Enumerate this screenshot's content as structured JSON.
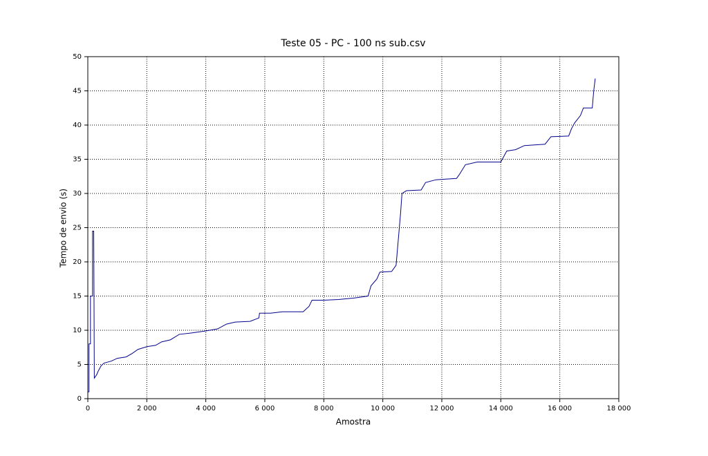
{
  "chart_data": {
    "type": "line",
    "title": "Teste 05 - PC - 100 ns sub.csv",
    "xlabel": "Amostra",
    "ylabel": "Tempo de envio (s)",
    "color": "#00008b",
    "grid": true,
    "xlim": [
      0,
      18000
    ],
    "ylim": [
      0,
      50
    ],
    "xticks": [
      0,
      {
        "value": 2000,
        "label": "2 000"
      },
      {
        "value": 4000,
        "label": "4 000"
      },
      {
        "value": 6000,
        "label": "6 000"
      },
      {
        "value": 8000,
        "label": "8 000"
      },
      {
        "value": 10000,
        "label": "10 000"
      },
      {
        "value": 12000,
        "label": "12 000"
      },
      {
        "value": 14000,
        "label": "14 000"
      },
      {
        "value": 16000,
        "label": "16 000"
      },
      {
        "value": 18000,
        "label": "18 000"
      }
    ],
    "yticks": [
      0,
      5,
      10,
      15,
      20,
      25,
      30,
      35,
      40,
      45,
      50
    ],
    "x": [
      0,
      40,
      40,
      90,
      90,
      160,
      160,
      200,
      210,
      220,
      300,
      350,
      450,
      550,
      800,
      1000,
      1300,
      1500,
      1700,
      2000,
      2300,
      2500,
      2800,
      3100,
      3500,
      4000,
      4400,
      4700,
      5000,
      5500,
      5800,
      5820,
      6200,
      6600,
      7000,
      7300,
      7500,
      7600,
      8000,
      8500,
      9000,
      9500,
      9600,
      9800,
      9900,
      10300,
      10450,
      10500,
      10600,
      10650,
      10800,
      11300,
      11450,
      11800,
      12500,
      12600,
      12800,
      13200,
      14000,
      14200,
      14500,
      14800,
      15500,
      15700,
      16300,
      16400,
      16500,
      16700,
      16800,
      17100,
      17150,
      17200
    ],
    "values": [
      1,
      1,
      8,
      8,
      15,
      15,
      24.5,
      24.5,
      15,
      3,
      3.5,
      4,
      4.8,
      5.2,
      5.5,
      5.9,
      6.1,
      6.6,
      7.2,
      7.6,
      7.8,
      8.3,
      8.6,
      9.4,
      9.6,
      9.9,
      10.2,
      10.9,
      11.2,
      11.3,
      11.8,
      12.5,
      12.5,
      12.7,
      12.7,
      12.7,
      13.5,
      14.4,
      14.4,
      14.5,
      14.7,
      15,
      16.5,
      17.5,
      18.5,
      18.6,
      19.5,
      22,
      27,
      30,
      30.4,
      30.5,
      31.6,
      32,
      32.2,
      32.8,
      34.2,
      34.6,
      34.6,
      36.2,
      36.4,
      37,
      37.2,
      38.3,
      38.4,
      39.5,
      40.3,
      41.4,
      42.5,
      42.5,
      45,
      46.8
    ]
  }
}
